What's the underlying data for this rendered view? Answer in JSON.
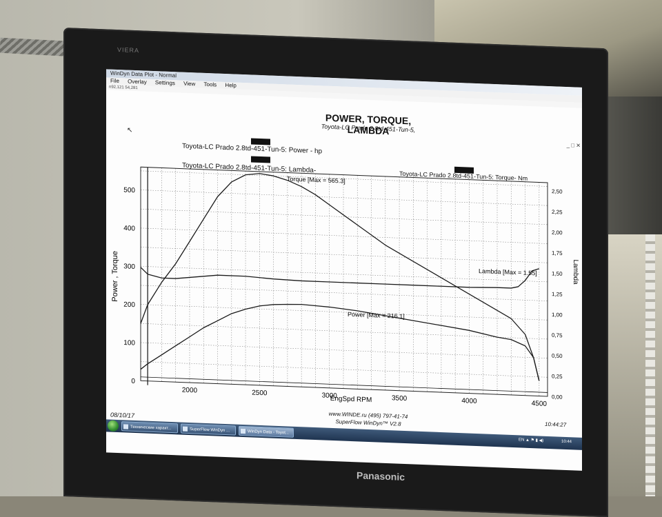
{
  "window": {
    "title": "WinDyn Data Plot - Normal",
    "menu": [
      "File",
      "Overlay",
      "Settings",
      "View",
      "Tools",
      "Help"
    ],
    "toolbar_text": "n92,121 54,281",
    "controls": "_ □ ✕"
  },
  "chart": {
    "title": "POWER, TORQUE, LAMBDA",
    "subtitle": "Toyota-LC Prado 2.8td-451-Tun-5,",
    "legend_power": "Toyota-LC Prado 2.8td-451-Tun-5: Power -  hp",
    "legend_lambda": "Toyota-LC Prado 2.8td-451-Tun-5: Lambda-",
    "legend_torque": "Toyota-LC Prado 2.8td-451-Tun-5: Torque-  Nm",
    "label_torque_max": "Torque [Max = 565.3]",
    "label_power_max": "Power  [Max = 216.1]",
    "label_lambda_max": "Lambda [Max = 1.55]",
    "footer_url": "www.WINDE.ru  (495) 797-41-74",
    "footer_sf": "SuperFlow WinDyn™ V2.8",
    "time": "10:44:27",
    "date": "08/10/17"
  },
  "chart_data": {
    "type": "line",
    "xlabel": "EngSpd  RPM",
    "ylabel": "Power , Torque",
    "y2label": "Lambda",
    "xlim": [
      1650,
      4560
    ],
    "ylim": [
      0,
      560
    ],
    "y2lim": [
      0,
      2.6
    ],
    "x_ticks": [
      "2000",
      "2500",
      "3000",
      "3500",
      "4000",
      "4500"
    ],
    "y_ticks": [
      "0",
      "100",
      "200",
      "300",
      "400",
      "500"
    ],
    "y2_ticks": [
      "0,00",
      "0,25",
      "0,50",
      "0,75",
      "1,00",
      "1,25",
      "1,50",
      "1,75",
      "2,00",
      "2,25",
      "2,50"
    ],
    "series": [
      {
        "name": "Torque",
        "axis": "left",
        "x": [
          1650,
          1700,
          1800,
          1900,
          2000,
          2100,
          2200,
          2300,
          2400,
          2500,
          2600,
          2700,
          2800,
          2900,
          3000,
          3200,
          3400,
          3600,
          3800,
          4000,
          4200,
          4300,
          4400,
          4460,
          4500
        ],
        "values": [
          150,
          200,
          260,
          310,
          370,
          430,
          490,
          530,
          550,
          555,
          550,
          540,
          525,
          505,
          480,
          430,
          380,
          340,
          300,
          260,
          220,
          200,
          160,
          100,
          40
        ]
      },
      {
        "name": "Power",
        "axis": "left",
        "x": [
          1650,
          1700,
          1800,
          1900,
          2000,
          2100,
          2200,
          2300,
          2400,
          2500,
          2600,
          2700,
          2800,
          2900,
          3000,
          3200,
          3400,
          3600,
          3800,
          4000,
          4200,
          4300,
          4400,
          4460,
          4500
        ],
        "values": [
          30,
          45,
          70,
          95,
          120,
          145,
          165,
          185,
          198,
          208,
          213,
          215,
          216,
          214,
          212,
          205,
          195,
          185,
          175,
          165,
          150,
          145,
          130,
          100,
          40
        ]
      },
      {
        "name": "Lambda",
        "axis": "right",
        "x": [
          1650,
          1700,
          1800,
          1900,
          2000,
          2200,
          2400,
          2600,
          2800,
          3000,
          3200,
          3400,
          3600,
          3800,
          4000,
          4200,
          4300,
          4350,
          4400,
          4450,
          4500
        ],
        "values": [
          1.38,
          1.3,
          1.26,
          1.26,
          1.28,
          1.32,
          1.32,
          1.3,
          1.29,
          1.29,
          1.29,
          1.29,
          1.29,
          1.29,
          1.29,
          1.3,
          1.3,
          1.32,
          1.4,
          1.52,
          1.55
        ]
      }
    ]
  }
}
